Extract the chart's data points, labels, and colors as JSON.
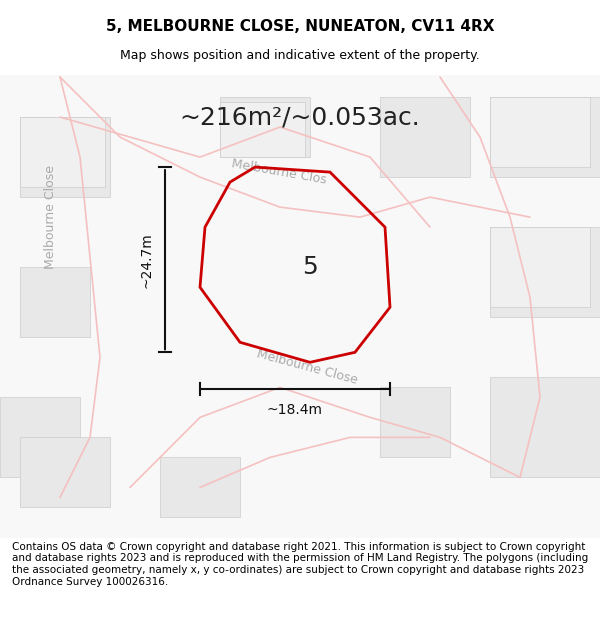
{
  "title": "5, MELBOURNE CLOSE, NUNEATON, CV11 4RX",
  "subtitle": "Map shows position and indicative extent of the property.",
  "area_text": "~216m²/~0.053ac.",
  "plot_number": "5",
  "width_label": "~18.4m",
  "height_label": "~24.7m",
  "background_color": "#f5f5f5",
  "map_bg": "#ffffff",
  "footer_text": "Contains OS data © Crown copyright and database right 2021. This information is subject to Crown copyright and database rights 2023 and is reproduced with the permission of HM Land Registry. The polygons (including the associated geometry, namely x, y co-ordinates) are subject to Crown copyright and database rights 2023 Ordnance Survey 100026316.",
  "title_fontsize": 11,
  "subtitle_fontsize": 9,
  "area_fontsize": 18,
  "footer_fontsize": 7.5,
  "plot_label_fontsize": 18,
  "dim_label_fontsize": 10,
  "road_label_fontsize": 9,
  "road_color": "#f5c0c0",
  "road_text_color": "#aaaaaa",
  "building_color": "#e0e0e0",
  "red_plot_color": "#cc0000",
  "dim_line_color": "#111111"
}
